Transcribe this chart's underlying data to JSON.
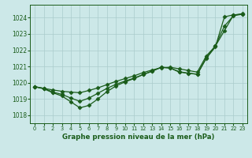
{
  "title": "Graphe pression niveau de la mer (hPa)",
  "xlim": [
    -0.5,
    23.5
  ],
  "ylim": [
    1017.5,
    1024.8
  ],
  "yticks": [
    1018,
    1019,
    1020,
    1021,
    1022,
    1023,
    1024
  ],
  "xticks": [
    0,
    1,
    2,
    3,
    4,
    5,
    6,
    7,
    8,
    9,
    10,
    11,
    12,
    13,
    14,
    15,
    16,
    17,
    18,
    19,
    20,
    21,
    22,
    23
  ],
  "bg_color": "#cce8e8",
  "grid_color": "#aacccc",
  "line_color": "#1a5c1a",
  "line_top": [
    1019.75,
    1019.65,
    1019.55,
    1019.47,
    1019.42,
    1019.38,
    1019.52,
    1019.68,
    1019.88,
    1020.08,
    1020.25,
    1020.42,
    1020.62,
    1020.78,
    1020.92,
    1020.95,
    1020.85,
    1020.75,
    1020.65,
    1021.65,
    1022.25,
    1023.2,
    1024.15,
    1024.25
  ],
  "line_mid": [
    1019.75,
    1019.65,
    1019.42,
    1019.28,
    1019.05,
    1018.85,
    1019.05,
    1019.35,
    1019.65,
    1019.9,
    1020.1,
    1020.28,
    1020.5,
    1020.72,
    1020.95,
    1020.9,
    1020.65,
    1020.58,
    1020.52,
    1021.52,
    1022.28,
    1023.48,
    1024.12,
    1024.22
  ],
  "line_bot": [
    1019.75,
    1019.62,
    1019.38,
    1019.18,
    1018.82,
    1018.45,
    1018.6,
    1019.0,
    1019.45,
    1019.8,
    1020.05,
    1020.25,
    1020.5,
    1020.7,
    1020.95,
    1020.9,
    1020.68,
    1020.58,
    1020.52,
    1021.5,
    1022.2,
    1024.05,
    1024.18,
    1024.22
  ]
}
